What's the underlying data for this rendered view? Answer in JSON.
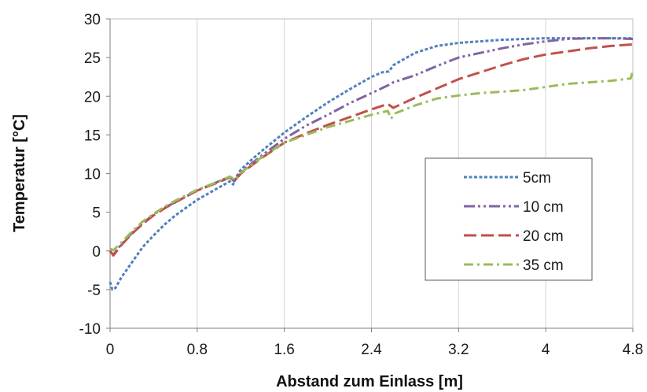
{
  "chart_data": {
    "type": "line",
    "title": "",
    "xlabel": "Abstand zum Einlass [m]",
    "ylabel": "Temperatur [°C]",
    "xlim": [
      0,
      4.8
    ],
    "ylim": [
      -10,
      30
    ],
    "xticks": [
      "0",
      "0.8",
      "1.6",
      "2.4",
      "3.2",
      "4",
      "4.8"
    ],
    "yticks": [
      "-10",
      "-5",
      "0",
      "5",
      "10",
      "15",
      "20",
      "25",
      "30"
    ],
    "grid": "vertical",
    "legend_position": "lower-right",
    "series": [
      {
        "name": "5cm",
        "color": "#4f81bd",
        "dash": "short-dash",
        "x": [
          0,
          0.02,
          0.05,
          0.1,
          0.2,
          0.3,
          0.4,
          0.5,
          0.6,
          0.8,
          1.0,
          1.1,
          1.13,
          1.16,
          1.2,
          1.3,
          1.4,
          1.6,
          1.8,
          2.0,
          2.2,
          2.4,
          2.5,
          2.56,
          2.6,
          2.8,
          3.0,
          3.2,
          3.4,
          3.6,
          3.8,
          4.0,
          4.2,
          4.4,
          4.6,
          4.8
        ],
        "y": [
          -4.0,
          -5.0,
          -4.8,
          -3.5,
          -1.5,
          0.5,
          2.0,
          3.4,
          4.6,
          6.6,
          8.2,
          9.0,
          8.6,
          9.6,
          10.5,
          11.8,
          13.0,
          15.3,
          17.3,
          19.2,
          20.9,
          22.5,
          23.1,
          23.2,
          24.0,
          25.6,
          26.5,
          26.9,
          27.1,
          27.3,
          27.4,
          27.5,
          27.5,
          27.5,
          27.5,
          27.5
        ]
      },
      {
        "name": "10 cm",
        "color": "#8064a2",
        "dash": "dash-dot-dot",
        "x": [
          0,
          0.03,
          0.1,
          0.2,
          0.3,
          0.4,
          0.5,
          0.6,
          0.8,
          1.0,
          1.1,
          1.14,
          1.2,
          1.4,
          1.6,
          1.8,
          2.0,
          2.2,
          2.4,
          2.55,
          2.6,
          2.8,
          3.0,
          3.2,
          3.4,
          3.6,
          3.8,
          4.0,
          4.2,
          4.4,
          4.6,
          4.8
        ],
        "y": [
          0.0,
          -0.5,
          0.8,
          2.3,
          3.6,
          4.7,
          5.6,
          6.3,
          7.8,
          9.0,
          9.6,
          9.0,
          10.2,
          12.4,
          14.5,
          16.2,
          17.6,
          19.1,
          20.4,
          21.4,
          21.8,
          22.7,
          23.9,
          25.0,
          25.6,
          26.2,
          26.7,
          27.1,
          27.4,
          27.5,
          27.5,
          27.4
        ]
      },
      {
        "name": "20 cm",
        "color": "#c0504d",
        "dash": "long-dash",
        "x": [
          0,
          0.03,
          0.1,
          0.2,
          0.3,
          0.4,
          0.5,
          0.6,
          0.8,
          1.0,
          1.1,
          1.14,
          1.2,
          1.4,
          1.6,
          1.8,
          2.0,
          2.2,
          2.4,
          2.55,
          2.6,
          2.8,
          3.0,
          3.2,
          3.4,
          3.6,
          3.8,
          4.0,
          4.2,
          4.4,
          4.6,
          4.8
        ],
        "y": [
          0.0,
          -0.6,
          0.7,
          2.2,
          3.5,
          4.6,
          5.5,
          6.3,
          7.8,
          8.9,
          9.5,
          9.0,
          10.0,
          12.1,
          14.0,
          15.2,
          16.3,
          17.3,
          18.3,
          19.0,
          18.5,
          19.8,
          21.0,
          22.2,
          23.1,
          24.0,
          24.8,
          25.4,
          25.8,
          26.2,
          26.5,
          26.7
        ]
      },
      {
        "name": "35 cm",
        "color": "#9bbb59",
        "dash": "dash-dot",
        "x": [
          0,
          0.03,
          0.1,
          0.2,
          0.3,
          0.4,
          0.5,
          0.6,
          0.8,
          1.0,
          1.1,
          1.15,
          1.2,
          1.4,
          1.6,
          1.8,
          2.0,
          2.2,
          2.4,
          2.55,
          2.58,
          2.62,
          2.8,
          3.0,
          3.2,
          3.4,
          3.6,
          3.8,
          4.0,
          4.2,
          4.4,
          4.6,
          4.78,
          4.8
        ],
        "y": [
          0.3,
          0.1,
          1.0,
          2.5,
          3.8,
          4.8,
          5.7,
          6.5,
          7.9,
          9.0,
          9.6,
          9.2,
          10.1,
          12.2,
          14.0,
          15.0,
          16.0,
          16.8,
          17.6,
          18.1,
          17.1,
          17.8,
          18.8,
          19.7,
          20.1,
          20.4,
          20.6,
          20.8,
          21.2,
          21.6,
          21.8,
          22.0,
          22.3,
          23.3
        ]
      }
    ]
  }
}
